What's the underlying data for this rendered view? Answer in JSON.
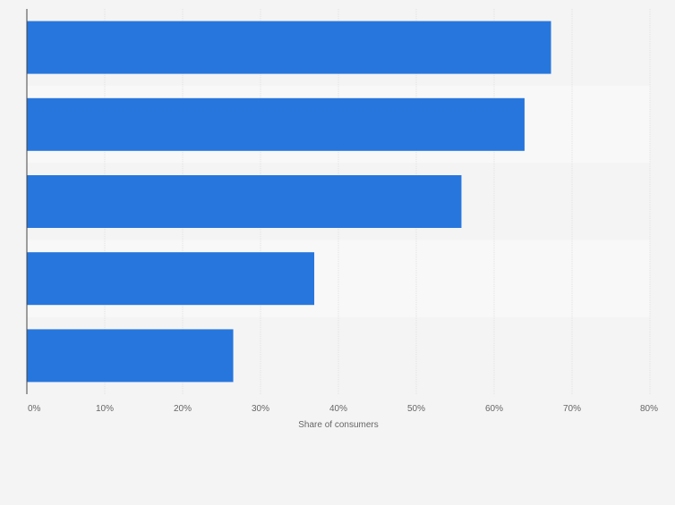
{
  "chart_data": {
    "type": "bar",
    "orientation": "horizontal",
    "categories": [
      "",
      "",
      "",
      "",
      ""
    ],
    "values": [
      67.3,
      63.9,
      55.8,
      36.9,
      26.5
    ],
    "xlabel": "Share of consumers",
    "ylabel": "",
    "xlim": [
      0,
      80
    ],
    "x_ticks": [
      "0%",
      "10%",
      "20%",
      "30%",
      "40%",
      "50%",
      "60%",
      "70%",
      "80%"
    ],
    "grid": true,
    "legend": "none",
    "colors": {
      "bar": "#2776dd",
      "band_dark": "#f4f4f4",
      "band_light": "#f8f8f8",
      "grid": "#e2e2e2",
      "axis": "#444444"
    }
  }
}
